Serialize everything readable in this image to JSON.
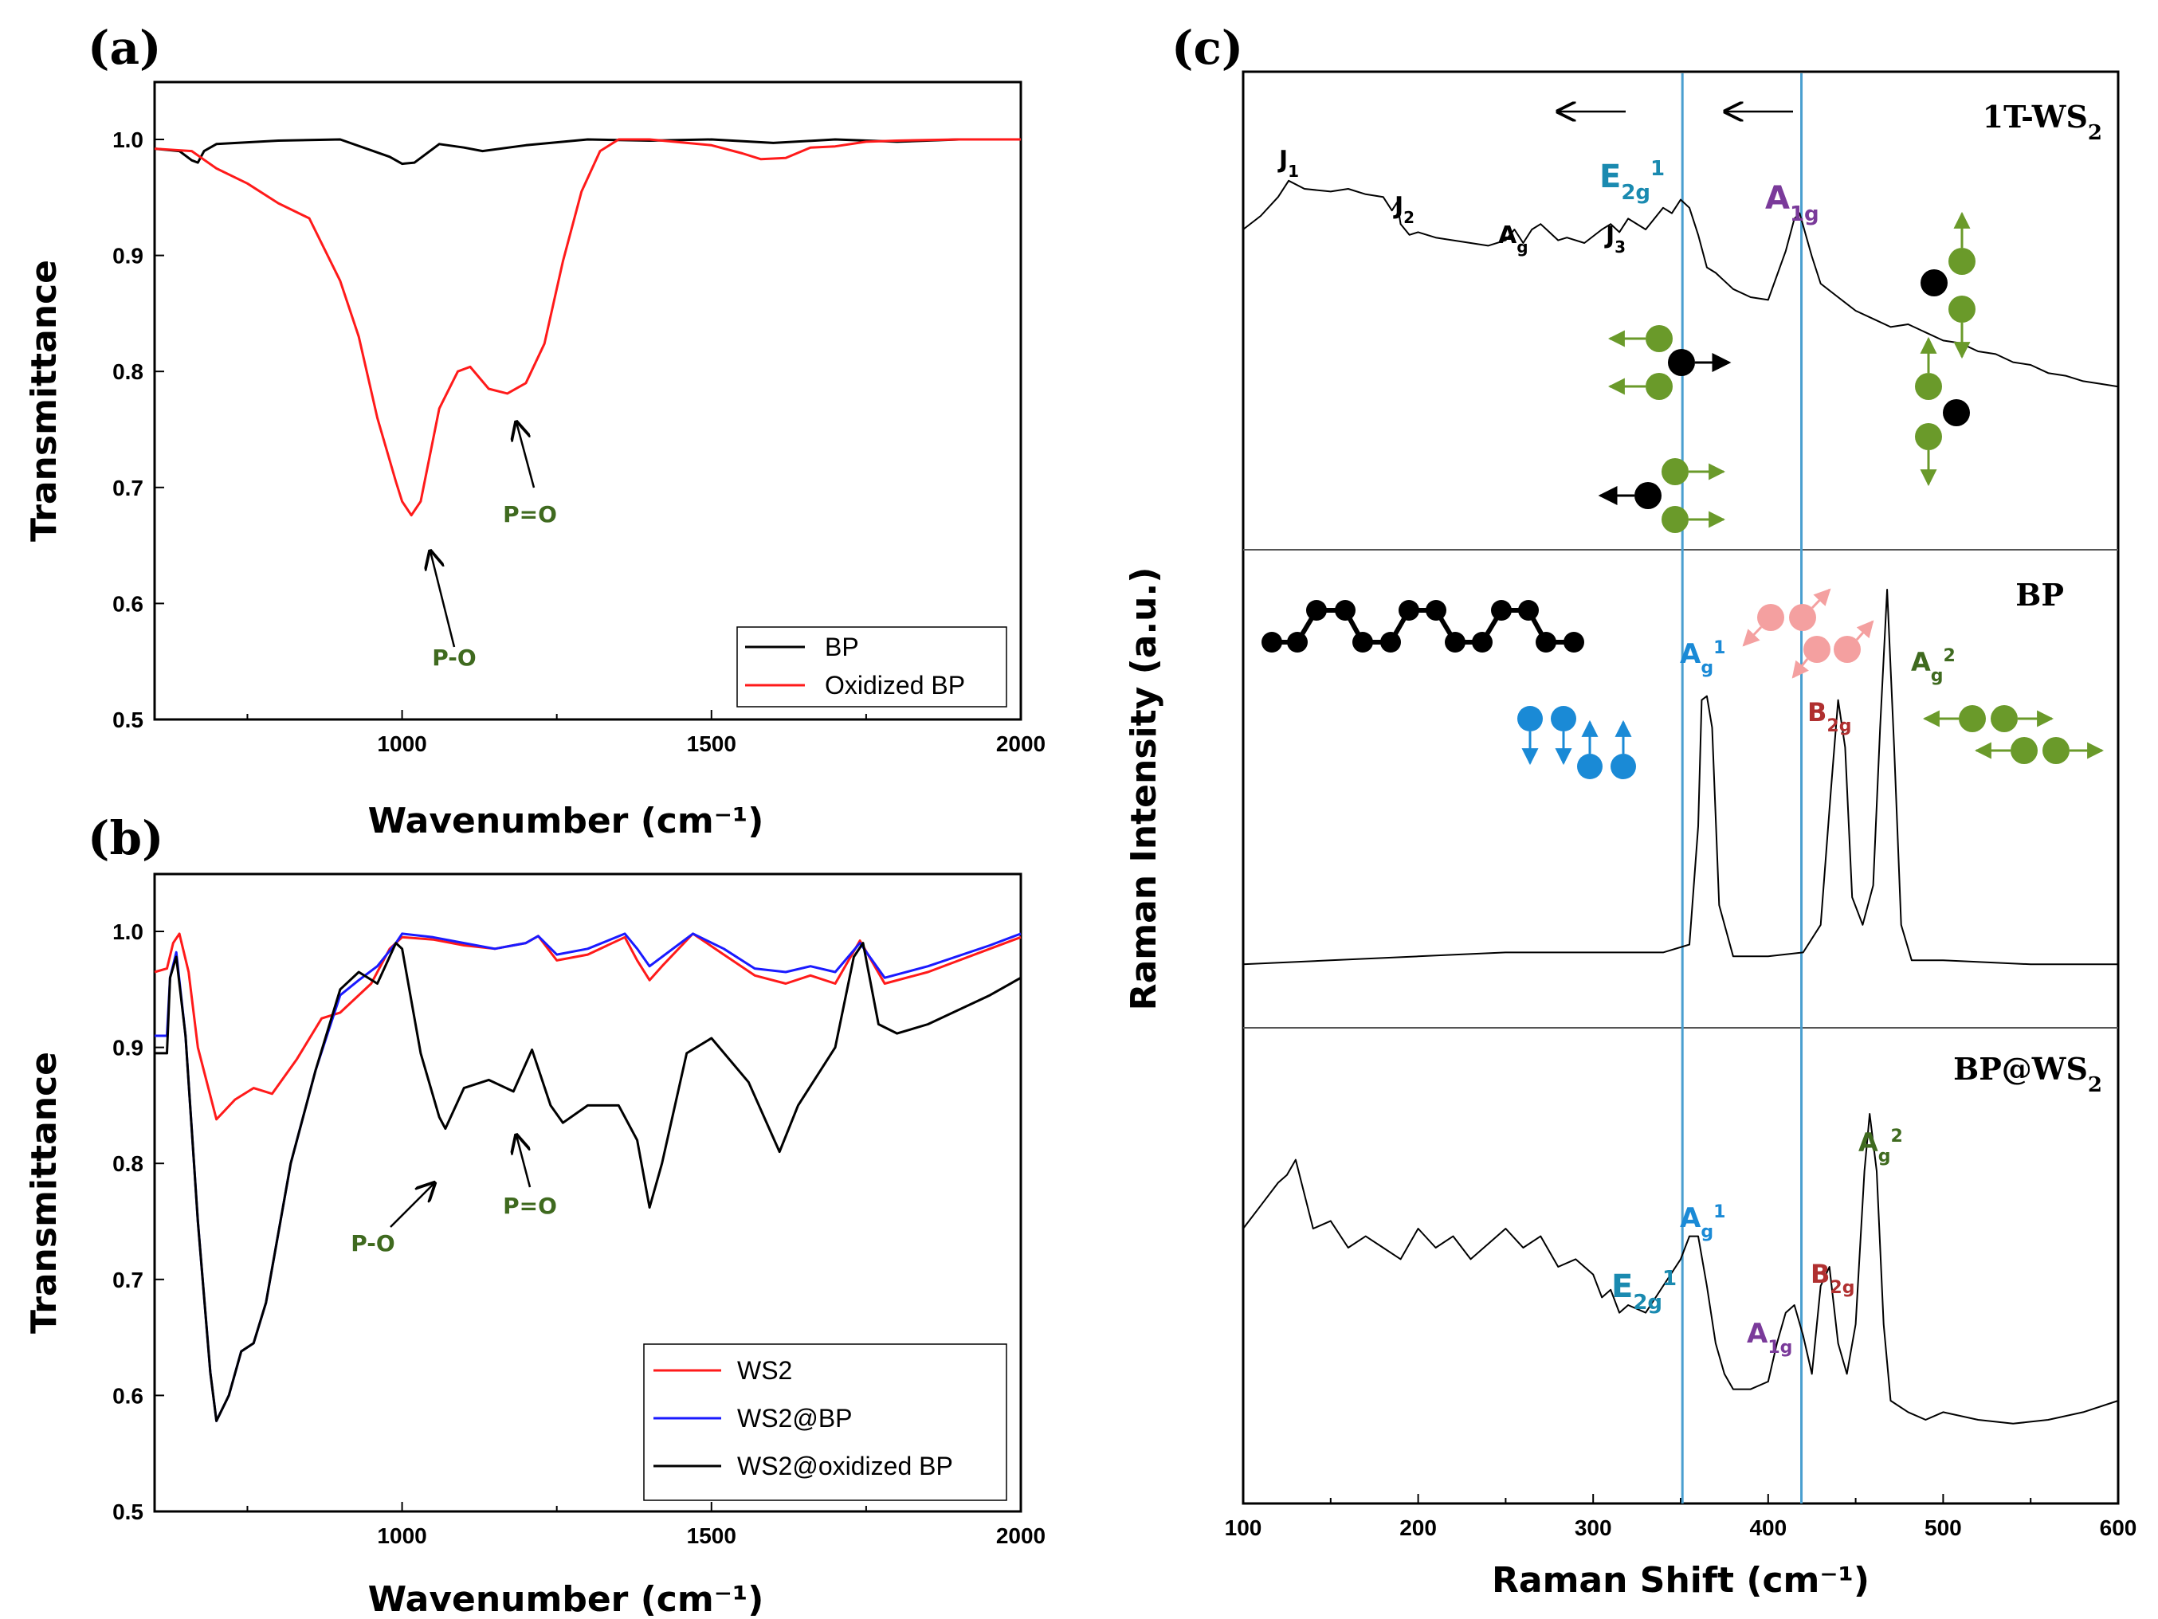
{
  "panels": {
    "a": {
      "label": "(a)"
    },
    "b": {
      "label": "(b)"
    },
    "c": {
      "label": "(c)"
    }
  },
  "colors": {
    "bp": "#000000",
    "oxidized": "#ff1a1a",
    "ws2": "#ff1a1a",
    "ws2_bp": "#1a1aff",
    "ws2_oxbp": "#000000",
    "guide": "#4a9fd0",
    "green": "#6a9a2a",
    "blue": "#1a8ad6",
    "pink": "#f4a0a0",
    "purple": "#7a3a9a",
    "teal": "#1a8ab0",
    "darkred": "#b03030"
  },
  "chart_data": [
    {
      "id": "a",
      "type": "line",
      "xlabel": "Wavenumber (cm⁻¹)",
      "ylabel": "Transmittance",
      "xlim": [
        600,
        2000
      ],
      "ylim": [
        0.5,
        1.05
      ],
      "xticks": [
        "1000",
        "1500",
        "2000"
      ],
      "yticks": [
        "0.5",
        "0.6",
        "0.7",
        "0.8",
        "0.9",
        "1.0"
      ],
      "series": [
        {
          "name": "BP",
          "x": [
            600,
            640,
            660,
            670,
            680,
            700,
            800,
            900,
            980,
            1000,
            1020,
            1060,
            1100,
            1130,
            1200,
            1300,
            1400,
            1500,
            1600,
            1700,
            1800,
            1900,
            2000
          ],
          "y": [
            0.992,
            0.99,
            0.982,
            0.98,
            0.99,
            0.996,
            0.999,
            1.0,
            0.985,
            0.979,
            0.98,
            0.996,
            0.993,
            0.99,
            0.995,
            1.0,
            0.999,
            1.0,
            0.997,
            1.0,
            0.998,
            1.0,
            1.0
          ]
        },
        {
          "name": "Oxidized BP",
          "x": [
            600,
            660,
            700,
            750,
            800,
            850,
            900,
            930,
            960,
            990,
            1000,
            1015,
            1030,
            1060,
            1090,
            1110,
            1140,
            1170,
            1200,
            1230,
            1260,
            1290,
            1320,
            1350,
            1400,
            1500,
            1550,
            1580,
            1620,
            1660,
            1700,
            1750,
            1800,
            1900,
            2000
          ],
          "y": [
            0.992,
            0.99,
            0.975,
            0.962,
            0.945,
            0.932,
            0.878,
            0.83,
            0.76,
            0.705,
            0.688,
            0.676,
            0.688,
            0.768,
            0.8,
            0.804,
            0.785,
            0.781,
            0.79,
            0.824,
            0.895,
            0.955,
            0.99,
            1.0,
            1.0,
            0.995,
            0.988,
            0.983,
            0.984,
            0.993,
            0.994,
            0.998,
            0.999,
            1.0,
            1.0
          ]
        }
      ],
      "annotations": [
        "P-O",
        "P=O"
      ]
    },
    {
      "id": "b",
      "type": "line",
      "xlabel": "Wavenumber (cm⁻¹)",
      "ylabel": "Transmittance",
      "xlim": [
        600,
        2000
      ],
      "ylim": [
        0.5,
        1.05
      ],
      "xticks": [
        "1000",
        "1500",
        "2000"
      ],
      "yticks": [
        "0.5",
        "0.6",
        "0.7",
        "0.8",
        "0.9",
        "1.0"
      ],
      "series": [
        {
          "name": "WS2",
          "x": [
            600,
            620,
            630,
            640,
            655,
            670,
            700,
            730,
            760,
            790,
            830,
            870,
            900,
            950,
            980,
            1000,
            1050,
            1100,
            1150,
            1200,
            1220,
            1250,
            1300,
            1360,
            1380,
            1400,
            1420,
            1470,
            1520,
            1570,
            1620,
            1660,
            1700,
            1740,
            1780,
            1850,
            1950,
            2000
          ],
          "y": [
            0.965,
            0.968,
            0.99,
            0.998,
            0.965,
            0.9,
            0.838,
            0.855,
            0.865,
            0.86,
            0.89,
            0.925,
            0.93,
            0.955,
            0.985,
            0.995,
            0.993,
            0.988,
            0.985,
            0.99,
            0.996,
            0.975,
            0.98,
            0.995,
            0.975,
            0.958,
            0.97,
            0.998,
            0.98,
            0.962,
            0.955,
            0.962,
            0.955,
            0.992,
            0.955,
            0.965,
            0.985,
            0.995
          ]
        },
        {
          "name": "WS2@BP",
          "x": [
            600,
            620,
            625,
            635,
            650,
            670,
            690,
            700,
            720,
            740,
            760,
            780,
            820,
            860,
            900,
            930,
            960,
            990,
            1000,
            1050,
            1100,
            1150,
            1200,
            1220,
            1250,
            1300,
            1360,
            1380,
            1400,
            1420,
            1470,
            1520,
            1570,
            1620,
            1660,
            1700,
            1740,
            1780,
            1850,
            1950,
            2000
          ],
          "y": [
            0.91,
            0.91,
            0.96,
            0.982,
            0.91,
            0.75,
            0.62,
            0.578,
            0.6,
            0.638,
            0.645,
            0.68,
            0.8,
            0.88,
            0.945,
            0.958,
            0.97,
            0.99,
            0.998,
            0.995,
            0.99,
            0.985,
            0.99,
            0.996,
            0.98,
            0.985,
            0.998,
            0.985,
            0.97,
            0.978,
            0.998,
            0.985,
            0.968,
            0.965,
            0.97,
            0.965,
            0.99,
            0.96,
            0.97,
            0.988,
            0.998
          ]
        },
        {
          "name": "WS2@oxidized BP",
          "x": [
            600,
            620,
            625,
            635,
            650,
            670,
            690,
            700,
            720,
            740,
            760,
            780,
            820,
            860,
            900,
            930,
            960,
            990,
            1000,
            1030,
            1060,
            1070,
            1100,
            1140,
            1180,
            1210,
            1240,
            1260,
            1300,
            1350,
            1380,
            1400,
            1420,
            1460,
            1500,
            1560,
            1610,
            1640,
            1700,
            1730,
            1745,
            1770,
            1800,
            1850,
            1950,
            2000
          ],
          "y": [
            0.895,
            0.895,
            0.96,
            0.978,
            0.91,
            0.75,
            0.62,
            0.578,
            0.6,
            0.638,
            0.645,
            0.68,
            0.8,
            0.88,
            0.95,
            0.965,
            0.955,
            0.99,
            0.985,
            0.895,
            0.84,
            0.83,
            0.865,
            0.872,
            0.862,
            0.898,
            0.85,
            0.835,
            0.85,
            0.85,
            0.82,
            0.762,
            0.8,
            0.895,
            0.908,
            0.87,
            0.81,
            0.85,
            0.9,
            0.978,
            0.99,
            0.92,
            0.912,
            0.92,
            0.945,
            0.96
          ]
        }
      ],
      "annotations": [
        "P-O",
        "P=O"
      ]
    },
    {
      "id": "c",
      "type": "line",
      "xlabel": "Raman Shift (cm⁻¹)",
      "ylabel": "Raman Intensity (a.u.)",
      "xlim": [
        100,
        600
      ],
      "xticks": [
        "100",
        "200",
        "300",
        "400",
        "500",
        "600"
      ],
      "guides": [
        351,
        419
      ],
      "series": [
        {
          "name": "1T-WS2",
          "x": [
            100,
            110,
            120,
            126,
            135,
            150,
            160,
            170,
            180,
            185,
            188,
            190,
            195,
            200,
            210,
            220,
            230,
            240,
            250,
            255,
            260,
            265,
            270,
            275,
            280,
            285,
            295,
            305,
            310,
            315,
            320,
            330,
            340,
            345,
            350,
            355,
            360,
            365,
            370,
            380,
            390,
            400,
            410,
            415,
            418,
            425,
            430,
            440,
            450,
            460,
            470,
            480,
            490,
            500,
            510,
            520,
            530,
            540,
            550,
            560,
            570,
            580,
            590,
            600
          ],
          "y": [
            0.8,
            0.85,
            0.92,
            0.98,
            0.95,
            0.94,
            0.95,
            0.93,
            0.92,
            0.87,
            0.9,
            0.82,
            0.78,
            0.79,
            0.77,
            0.76,
            0.75,
            0.74,
            0.76,
            0.8,
            0.75,
            0.8,
            0.82,
            0.79,
            0.76,
            0.77,
            0.75,
            0.8,
            0.82,
            0.79,
            0.84,
            0.8,
            0.88,
            0.86,
            0.91,
            0.88,
            0.78,
            0.66,
            0.64,
            0.58,
            0.55,
            0.54,
            0.72,
            0.84,
            0.86,
            0.7,
            0.6,
            0.55,
            0.5,
            0.47,
            0.44,
            0.45,
            0.42,
            0.39,
            0.38,
            0.35,
            0.34,
            0.31,
            0.3,
            0.27,
            0.26,
            0.24,
            0.23,
            0.22
          ]
        },
        {
          "name": "BP",
          "x": [
            100,
            150,
            200,
            250,
            300,
            340,
            355,
            360,
            362,
            365,
            368,
            372,
            380,
            400,
            420,
            430,
            436,
            440,
            444,
            448,
            454,
            460,
            464,
            468,
            472,
            476,
            482,
            500,
            550,
            600
          ],
          "y": [
            0.05,
            0.06,
            0.07,
            0.08,
            0.08,
            0.08,
            0.1,
            0.4,
            0.72,
            0.73,
            0.65,
            0.2,
            0.07,
            0.07,
            0.08,
            0.15,
            0.5,
            0.72,
            0.6,
            0.22,
            0.15,
            0.25,
            0.65,
            1.0,
            0.6,
            0.15,
            0.06,
            0.06,
            0.05,
            0.05
          ]
        },
        {
          "name": "BP@WS2",
          "x": [
            100,
            110,
            120,
            125,
            130,
            140,
            150,
            160,
            170,
            180,
            190,
            200,
            210,
            220,
            230,
            240,
            250,
            260,
            270,
            280,
            290,
            300,
            305,
            310,
            315,
            320,
            330,
            340,
            350,
            355,
            360,
            365,
            370,
            375,
            380,
            390,
            400,
            405,
            410,
            415,
            420,
            425,
            430,
            435,
            440,
            445,
            450,
            455,
            458,
            462,
            466,
            470,
            480,
            490,
            500,
            520,
            540,
            560,
            580,
            600
          ],
          "y": [
            0.6,
            0.66,
            0.72,
            0.74,
            0.78,
            0.6,
            0.62,
            0.55,
            0.58,
            0.55,
            0.52,
            0.6,
            0.55,
            0.58,
            0.52,
            0.56,
            0.6,
            0.55,
            0.58,
            0.5,
            0.52,
            0.48,
            0.42,
            0.44,
            0.38,
            0.4,
            0.38,
            0.45,
            0.52,
            0.58,
            0.58,
            0.45,
            0.3,
            0.22,
            0.18,
            0.18,
            0.2,
            0.3,
            0.38,
            0.4,
            0.32,
            0.22,
            0.45,
            0.5,
            0.3,
            0.22,
            0.35,
            0.75,
            0.9,
            0.75,
            0.35,
            0.15,
            0.12,
            0.1,
            0.12,
            0.1,
            0.09,
            0.1,
            0.12,
            0.15
          ]
        }
      ],
      "panel_titles": [
        "1T-WS2",
        "BP",
        "BP@WS2"
      ],
      "peak_labels": {
        "ws2": [
          "J1",
          "J2",
          "Ag",
          "J3",
          "E2g1",
          "A1g"
        ],
        "bp": [
          "Ag1",
          "B2g",
          "Ag2"
        ],
        "bpws2": [
          "E2g1",
          "Ag1",
          "A1g",
          "B2g",
          "Ag2"
        ]
      }
    }
  ]
}
